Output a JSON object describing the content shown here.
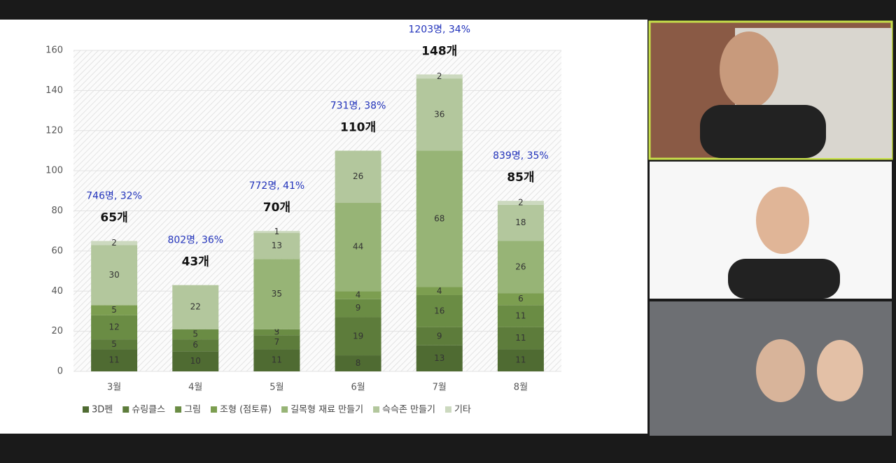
{
  "chart_data": {
    "type": "stacked-bar",
    "categories": [
      "3월",
      "4월",
      "5월",
      "6월",
      "7월",
      "8월"
    ],
    "series": [
      {
        "name": "3D펜",
        "color": "#4f6b32",
        "values": [
          11,
          10,
          11,
          8,
          13,
          11
        ]
      },
      {
        "name": "슈링클스",
        "color": "#5d7c3b",
        "values": [
          5,
          6,
          7,
          19,
          9,
          11
        ]
      },
      {
        "name": "그림",
        "color": "#6a8c44",
        "values": [
          12,
          5,
          3,
          9,
          16,
          11
        ]
      },
      {
        "name": "조형 (점토류)",
        "color": "#7c9e50",
        "values": [
          5,
          null,
          0,
          4,
          4,
          6
        ]
      },
      {
        "name": "길목형 재료 만들기",
        "color": "#97b476",
        "values": [
          null,
          null,
          35,
          44,
          68,
          26
        ]
      },
      {
        "name": "슥슥존 만들기",
        "color": "#b3c79d",
        "values": [
          30,
          22,
          13,
          26,
          36,
          18
        ]
      },
      {
        "name": "기타",
        "color": "#ccd9bf",
        "values": [
          2,
          null,
          1,
          null,
          2,
          2
        ]
      }
    ],
    "total_labels": [
      "65개",
      "43개",
      "70개",
      "110개",
      "148개",
      "85개"
    ],
    "annotations": [
      "746명, 32%",
      "802명, 36%",
      "772명, 41%",
      "731명, 38%",
      "1203명, 34%",
      "839명, 35%"
    ],
    "ylim": [
      0,
      160
    ],
    "yticks": [
      0,
      20,
      40,
      60,
      80,
      100,
      120,
      140,
      160
    ]
  }
}
